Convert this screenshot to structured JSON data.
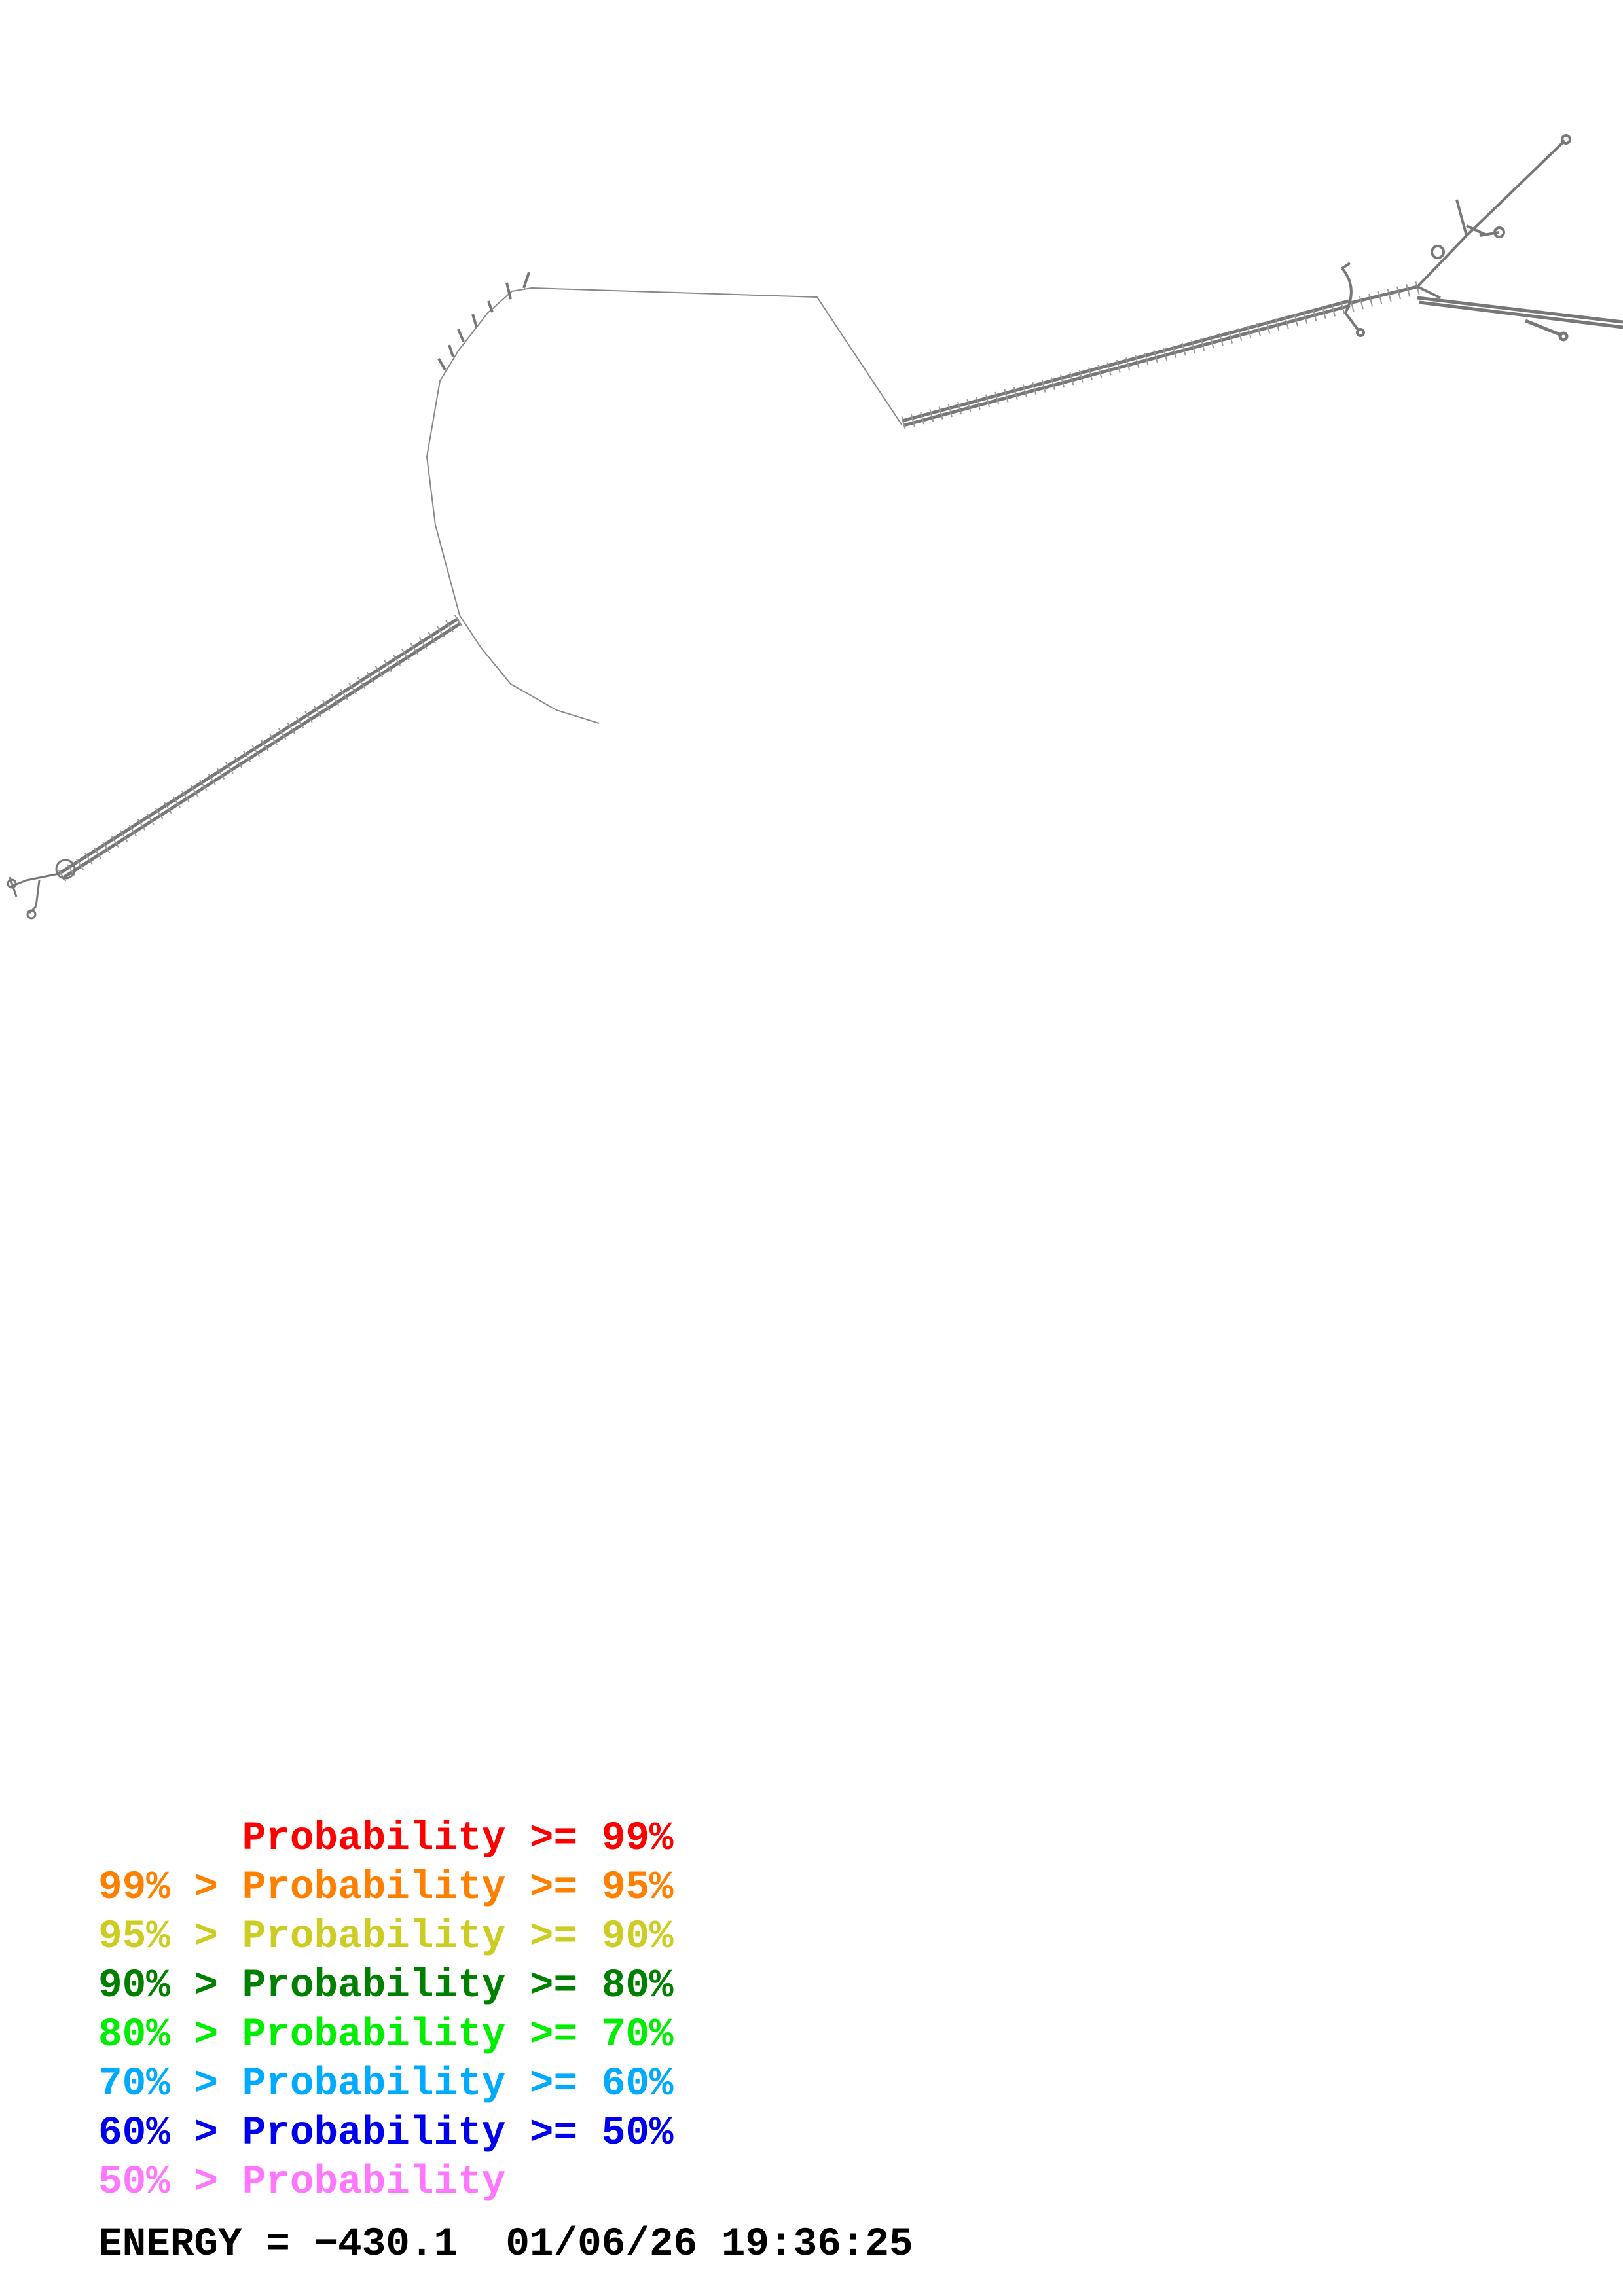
{
  "legend": [
    {
      "text": "      Probability >= 99%",
      "color": "#ff0000"
    },
    {
      "text": "99% > Probability >= 95%",
      "color": "#ff8000"
    },
    {
      "text": "95% > Probability >= 90%",
      "color": "#cccc22"
    },
    {
      "text": "90% > Probability >= 80%",
      "color": "#008000"
    },
    {
      "text": "80% > Probability >= 70%",
      "color": "#00ee00"
    },
    {
      "text": "70% > Probability >= 60%",
      "color": "#00aaff"
    },
    {
      "text": "60% > Probability >= 50%",
      "color": "#0000ee"
    },
    {
      "text": "50% > Probability",
      "color": "#ff77ff"
    }
  ],
  "footer": {
    "energy": "ENERGY = −430.1",
    "timestamp": "01/06/26 19:36:25"
  },
  "structure_color": "#555555"
}
